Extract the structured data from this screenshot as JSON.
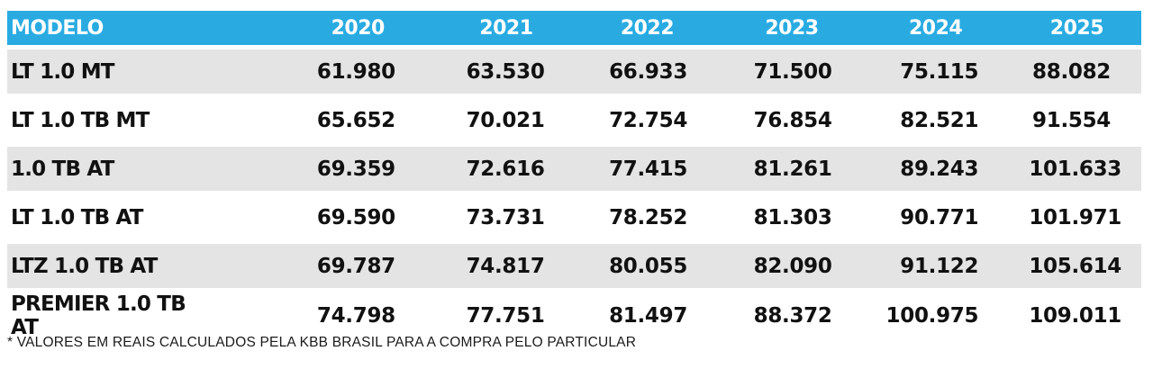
{
  "table": {
    "header_color": "#29abe2",
    "stripe_color": "#e4e4e4",
    "columns": [
      "MODELO",
      "2020",
      "2021",
      "2022",
      "2023",
      "2024",
      "2025"
    ],
    "rows": [
      {
        "model": "LT 1.0 MT",
        "values": [
          "61.980",
          "63.530",
          "66.933",
          "71.500",
          "75.115",
          "88.082"
        ]
      },
      {
        "model": "LT 1.0 TB MT",
        "values": [
          "65.652",
          "70.021",
          "72.754",
          "76.854",
          "82.521",
          "91.554"
        ]
      },
      {
        "model": "1.0 TB AT",
        "values": [
          "69.359",
          "72.616",
          "77.415",
          "81.261",
          "89.243",
          "101.633"
        ]
      },
      {
        "model": "LT 1.0 TB AT",
        "values": [
          "69.590",
          "73.731",
          "78.252",
          "81.303",
          "90.771",
          "101.971"
        ]
      },
      {
        "model": "LTZ 1.0 TB AT",
        "values": [
          "69.787",
          "74.817",
          "80.055",
          "82.090",
          "91.122",
          "105.614"
        ]
      },
      {
        "model": "PREMIER 1.0 TB AT",
        "values": [
          "74.798",
          "77.751",
          "81.497",
          "88.372",
          "100.975",
          "109.011"
        ]
      }
    ]
  },
  "footnote": "* VALORES EM REAIS CALCULADOS PELA KBB BRASIL PARA A COMPRA PELO PARTICULAR"
}
